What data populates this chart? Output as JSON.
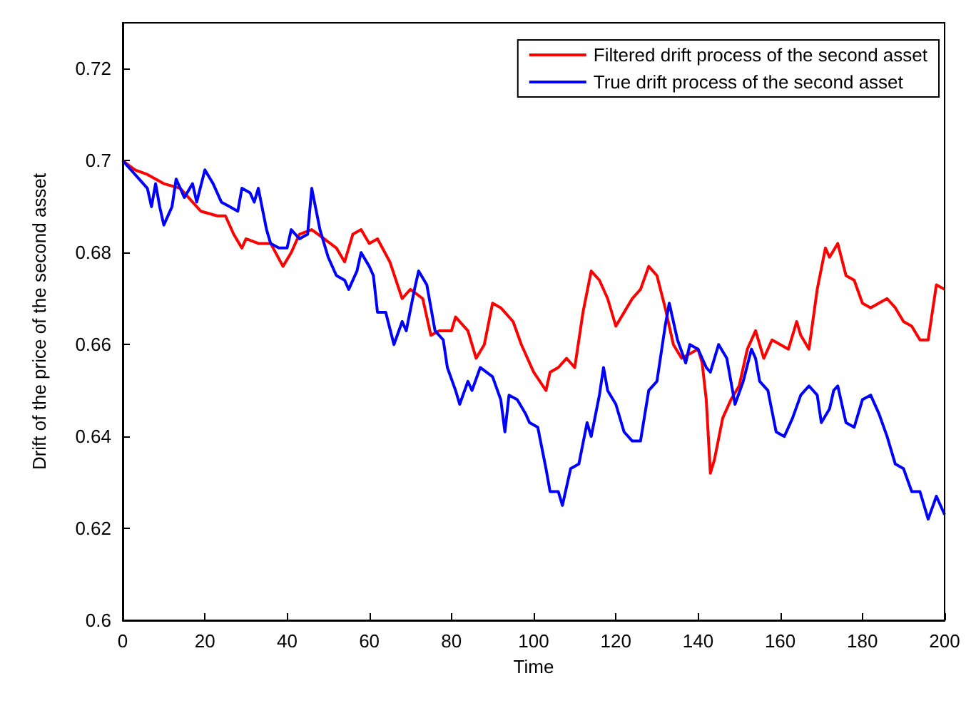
{
  "chart_data": {
    "type": "line",
    "xlabel": "Time",
    "ylabel": "Drift of the price of the second asset",
    "xlim": [
      0,
      200
    ],
    "xticks": [
      0,
      20,
      40,
      60,
      80,
      100,
      120,
      140,
      160,
      180,
      200
    ],
    "ylim": [
      0.6,
      0.73
    ],
    "yticks": [
      0.6,
      0.62,
      0.64,
      0.66,
      0.68,
      0.7,
      0.72
    ],
    "grid": false,
    "legend": "top right",
    "marker": "none",
    "line_style": "solid",
    "series": [
      {
        "name": "Filtered drift process of the second asset",
        "color": "#ff0000",
        "x": [
          0,
          3,
          6,
          10,
          14,
          17,
          19,
          23,
          25,
          27,
          29,
          30,
          33,
          36,
          39,
          41,
          43,
          46,
          49,
          52,
          54,
          56,
          58,
          60,
          62,
          65,
          68,
          70,
          73,
          75,
          77,
          80,
          81,
          84,
          86,
          88,
          90,
          92,
          95,
          97,
          100,
          103,
          104,
          106,
          108,
          110,
          112,
          114,
          116,
          118,
          120,
          122,
          124,
          126,
          128,
          130,
          132,
          134,
          136,
          138,
          140,
          141,
          142,
          143,
          144,
          146,
          148,
          150,
          152,
          154,
          156,
          158,
          160,
          162,
          164,
          165,
          167,
          169,
          171,
          172,
          174,
          176,
          178,
          180,
          182,
          184,
          186,
          188,
          190,
          192,
          194,
          196,
          198,
          200
        ],
        "values": [
          0.7,
          0.698,
          0.697,
          0.695,
          0.694,
          0.691,
          0.689,
          0.688,
          0.688,
          0.684,
          0.681,
          0.683,
          0.682,
          0.682,
          0.677,
          0.68,
          0.684,
          0.685,
          0.683,
          0.681,
          0.678,
          0.684,
          0.685,
          0.682,
          0.683,
          0.678,
          0.67,
          0.672,
          0.67,
          0.662,
          0.663,
          0.663,
          0.666,
          0.663,
          0.657,
          0.66,
          0.669,
          0.668,
          0.665,
          0.66,
          0.654,
          0.65,
          0.654,
          0.655,
          0.657,
          0.655,
          0.667,
          0.676,
          0.674,
          0.67,
          0.664,
          0.667,
          0.67,
          0.672,
          0.677,
          0.675,
          0.668,
          0.66,
          0.657,
          0.658,
          0.659,
          0.656,
          0.648,
          0.632,
          0.635,
          0.644,
          0.648,
          0.651,
          0.659,
          0.663,
          0.657,
          0.661,
          0.66,
          0.659,
          0.665,
          0.662,
          0.659,
          0.672,
          0.681,
          0.679,
          0.682,
          0.675,
          0.674,
          0.669,
          0.668,
          0.669,
          0.67,
          0.668,
          0.665,
          0.664,
          0.661,
          0.661,
          0.673,
          0.672
        ]
      },
      {
        "name": "True drift process of the second asset",
        "color": "#0000ff",
        "x": [
          0,
          2,
          4,
          6,
          7,
          8,
          9,
          10,
          12,
          13,
          15,
          17,
          18,
          20,
          22,
          24,
          26,
          28,
          29,
          31,
          32,
          33,
          35,
          36,
          38,
          40,
          41,
          43,
          45,
          46,
          48,
          50,
          52,
          54,
          55,
          57,
          58,
          60,
          61,
          62,
          64,
          66,
          68,
          69,
          71,
          72,
          74,
          76,
          78,
          79,
          81,
          82,
          84,
          85,
          87,
          90,
          92,
          93,
          94,
          96,
          98,
          99,
          101,
          103,
          104,
          106,
          107,
          109,
          111,
          113,
          114,
          116,
          117,
          118,
          120,
          122,
          124,
          126,
          128,
          130,
          132,
          133,
          135,
          137,
          138,
          140,
          142,
          143,
          145,
          147,
          149,
          151,
          153,
          154,
          155,
          157,
          159,
          161,
          163,
          165,
          167,
          169,
          170,
          172,
          173,
          174,
          176,
          178,
          180,
          182,
          184,
          186,
          188,
          190,
          192,
          194,
          196,
          198,
          200
        ],
        "values": [
          0.7,
          0.698,
          0.696,
          0.694,
          0.69,
          0.695,
          0.69,
          0.686,
          0.69,
          0.696,
          0.692,
          0.695,
          0.691,
          0.698,
          0.695,
          0.691,
          0.69,
          0.689,
          0.694,
          0.693,
          0.691,
          0.694,
          0.685,
          0.682,
          0.681,
          0.681,
          0.685,
          0.683,
          0.684,
          0.694,
          0.685,
          0.679,
          0.675,
          0.674,
          0.672,
          0.676,
          0.68,
          0.677,
          0.675,
          0.667,
          0.667,
          0.66,
          0.665,
          0.663,
          0.672,
          0.676,
          0.673,
          0.663,
          0.661,
          0.655,
          0.65,
          0.647,
          0.652,
          0.65,
          0.655,
          0.653,
          0.648,
          0.641,
          0.649,
          0.648,
          0.645,
          0.643,
          0.642,
          0.633,
          0.628,
          0.628,
          0.625,
          0.633,
          0.634,
          0.643,
          0.64,
          0.649,
          0.655,
          0.65,
          0.647,
          0.641,
          0.639,
          0.639,
          0.65,
          0.652,
          0.664,
          0.669,
          0.661,
          0.656,
          0.66,
          0.659,
          0.655,
          0.654,
          0.66,
          0.657,
          0.647,
          0.652,
          0.659,
          0.657,
          0.652,
          0.65,
          0.641,
          0.64,
          0.644,
          0.649,
          0.651,
          0.649,
          0.643,
          0.646,
          0.65,
          0.651,
          0.643,
          0.642,
          0.648,
          0.649,
          0.645,
          0.64,
          0.634,
          0.633,
          0.628,
          0.628,
          0.622,
          0.627,
          0.623
        ]
      }
    ]
  }
}
